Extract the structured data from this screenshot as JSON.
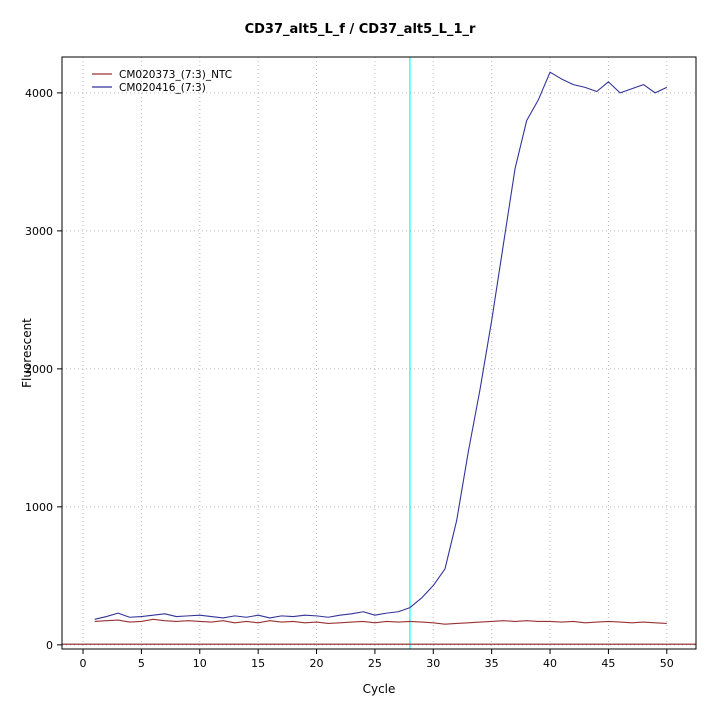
{
  "chart_data": {
    "type": "line",
    "title": "CD37_alt5_L_f / CD37_alt5_L_1_r",
    "xlabel": "Cycle",
    "ylabel": "Fluorescent",
    "xlim": [
      -1.8,
      52.5
    ],
    "ylim": [
      -30,
      4260
    ],
    "xticks": [
      0,
      5,
      10,
      15,
      20,
      25,
      30,
      35,
      40,
      45,
      50
    ],
    "yticks": [
      0,
      1000,
      2000,
      3000,
      4000
    ],
    "grid": true,
    "grid_style": "dotted",
    "grid_color": "#bbbbbb",
    "legend_position": "top-left",
    "threshold_cycle_line": {
      "x": 28,
      "color": "#00FFFF"
    },
    "baseline_line": {
      "y": 5,
      "color": "#8B2222"
    },
    "x": [
      1,
      2,
      3,
      4,
      5,
      6,
      7,
      8,
      9,
      10,
      11,
      12,
      13,
      14,
      15,
      16,
      17,
      18,
      19,
      20,
      21,
      22,
      23,
      24,
      25,
      26,
      27,
      28,
      29,
      30,
      31,
      32,
      33,
      34,
      35,
      36,
      37,
      38,
      39,
      40,
      41,
      42,
      43,
      44,
      45,
      46,
      47,
      48,
      49,
      50
    ],
    "series": [
      {
        "name": "CM020373_(7:3)_NTC",
        "color": "#993333",
        "values": [
          170,
          175,
          180,
          165,
          170,
          185,
          175,
          170,
          175,
          170,
          165,
          175,
          160,
          170,
          160,
          175,
          165,
          170,
          160,
          165,
          155,
          160,
          165,
          170,
          160,
          170,
          165,
          170,
          165,
          160,
          150,
          155,
          160,
          165,
          170,
          175,
          170,
          175,
          170,
          170,
          165,
          170,
          160,
          165,
          170,
          165,
          160,
          165,
          160,
          155
        ]
      },
      {
        "name": "CM020416_(7:3)",
        "color": "#333399",
        "values": [
          185,
          205,
          230,
          200,
          205,
          215,
          225,
          205,
          210,
          215,
          205,
          195,
          210,
          200,
          215,
          195,
          210,
          205,
          215,
          210,
          200,
          215,
          225,
          240,
          215,
          230,
          240,
          270,
          340,
          430,
          550,
          900,
          1400,
          1850,
          2350,
          2900,
          3450,
          3800,
          3950,
          4150,
          4100,
          4060,
          4040,
          4010,
          4080,
          4000,
          4030,
          4060,
          4000,
          4040
        ]
      }
    ]
  }
}
